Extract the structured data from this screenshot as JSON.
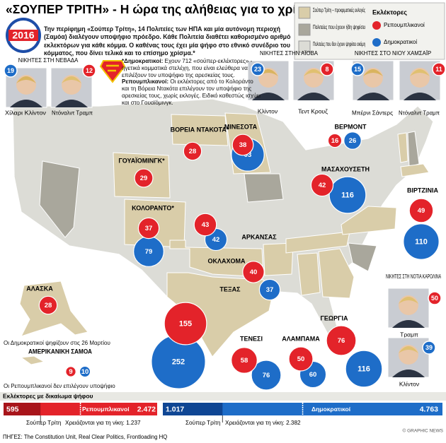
{
  "title": "«ΣΟΥΠΕΡ ΤΡΙΤΗ»",
  "title_rest": "- Η ώρα της αλήθειας για το χρίσμα",
  "badge": "2016",
  "intro": "Την περίφημη «Σούπερ Τρίτη», 14 Πολιτείες των ΗΠΑ και μία αυτόνομη περιοχή (Σαμόα) διαλέγουν υποψήφιο πρόεδρο. Κάθε Πολιτεία διαθέτει καθορισμένο αριθμό εκλεκτόρων για κάθε κόμμα. Ο καθένας τους έχει μία ψήφο στο εθνικό συνέδριο του κόμματος, που δίνει τελικά και το επίσημο χρίσμα.*",
  "notes": [
    {
      "lead": "*Δημοκρατικοί:",
      "text": "Εχουν 712 «σούπερ-εκλέκτορες» - ηγετικά κομματικά στελέχη, που είναι ελεύθερα να επιλέξουν τον υποψήφιο της αρεσκείας τους."
    },
    {
      "lead": "Ρεπουμπλικανοί:",
      "text": "Οι εκλέκτορες από το Κολοράντο και τη Βόρεια Ντακότα επιλέγουν τον υποψήφιο της αρεσκείας τους, χωρίς εκλογές. Ειδικό καθεστώς ισχύει και στο Γουαϊόμινγκ."
    }
  ],
  "map_legend": [
    {
      "label": "Σούπερ Τρίτη – προκριματικές εκλογές",
      "color": "#d9cda9"
    },
    {
      "label": "Πολιτείες που έχουν ήδη ψηφίσει",
      "color": "#a9a79c"
    },
    {
      "label": "Πολιτείες που δεν έχουν ψηφίσει ακόμη",
      "color": "#dcdcd6"
    }
  ],
  "delegates_legend": {
    "title": "Εκλέκτορες",
    "items": [
      {
        "label": "Ρεπουμπλικανοί",
        "color": "#e3232a"
      },
      {
        "label": "Δημοκρατικοί",
        "color": "#1e6dc8"
      }
    ]
  },
  "winners": [
    {
      "title": "ΝΙΚΗΤΕΣ ΣΤΗ ΝΕΒΑΔΑ",
      "candidates": [
        {
          "name": "Χίλαρι Κλίντον",
          "value": 19,
          "color": "#1e6dc8"
        },
        {
          "name": "Ντόναλντ Τραμπ",
          "value": 12,
          "color": "#e3232a"
        }
      ]
    },
    {
      "title": "ΝΙΚΗΤΕΣ ΣΤΗΝ ΑΪΟΒΑ",
      "candidates": [
        {
          "name": "Κλίντον",
          "value": 23,
          "color": "#1e6dc8"
        },
        {
          "name": "Τεντ Κρουζ",
          "value": 8,
          "color": "#e3232a"
        }
      ]
    },
    {
      "title": "ΝΙΚΗΤΕΣ ΣΤΟ ΝΙΟΥ ΧΑΜΣΑΪΡ",
      "candidates": [
        {
          "name": "Μπέρνι Σάντερς",
          "value": 15,
          "color": "#1e6dc8"
        },
        {
          "name": "Ντόναλντ Τραμπ",
          "value": 11,
          "color": "#e3232a"
        }
      ]
    },
    {
      "title": "ΝΙΚΗΤΕΣ ΣΤΗ ΝΟΤΙΑ ΚΑΡΟΛΙΝΑ",
      "candidates": [
        {
          "name": "Τραμπ",
          "value": 50,
          "color": "#e3232a"
        },
        {
          "name": "Κλίντον",
          "value": 39,
          "color": "#1e6dc8"
        }
      ]
    }
  ],
  "states": [
    {
      "name": "ΓΟΥΑΪΟΜΙΝΓΚ*",
      "rep": 29,
      "dem": null
    },
    {
      "name": "ΚΟΛΟΡΑΝΤΟ*",
      "rep": 37,
      "dem": 79
    },
    {
      "name": "ΒΟΡΕΙΑ ΝΤΑΚΟΤΑ*",
      "rep": 28,
      "dem": null
    },
    {
      "name": "ΜΙΝΕΣΟΤΑ",
      "rep": 38,
      "dem": 93
    },
    {
      "name": "ΟΚΛΑΧΟΜΑ",
      "rep": 43,
      "dem": 42
    },
    {
      "name": "ΑΡΚΑΝΣΑΣ",
      "rep": 40,
      "dem": 37
    },
    {
      "name": "ΤΕΞΑΣ",
      "rep": 155,
      "dem": 252
    },
    {
      "name": "ΤΕΝΕΣΙ",
      "rep": 58,
      "dem": 76
    },
    {
      "name": "ΑΛΑΜΠΑΜΑ",
      "rep": 50,
      "dem": 60
    },
    {
      "name": "ΓΕΩΡΓΙΑ",
      "rep": 76,
      "dem": 116
    },
    {
      "name": "ΒΙΡΤΖΙΝΙΑ",
      "rep": 49,
      "dem": 110
    },
    {
      "name": "ΜΑΣΑΧΟΥΣΕΤΗ",
      "rep": 42,
      "dem": 116
    },
    {
      "name": "ΒΕΡΜΟΝΤ",
      "rep": 16,
      "dem": 26
    },
    {
      "name": "ΑΛΑΣΚΑ",
      "rep": 28,
      "dem": null,
      "note": "Οι Δημοκρατικοί ψηφίζουν στις 26 Μαρτίου"
    },
    {
      "name": "ΑΜΕΡΙΚΑΝΙΚΗ ΣΑΜΟΑ",
      "rep": 9,
      "dem": 10,
      "note": "Οι Ρεπουμπλικανοί δεν επιλέγουν υποψήφιο"
    }
  ],
  "delegates": {
    "title": "Εκλέκτορες με δικαίωμα ψήφου",
    "parties": [
      {
        "name": "Ρεπουμπλικανοί",
        "color": "#e3232a",
        "dark": "#a8141a",
        "super_tuesday": 595,
        "total": 2472,
        "total_label": "2.472",
        "super_label": "Σούπερ Τρίτη",
        "needed_text": "Χρειάζονται για τη νίκη:",
        "needed": 1237,
        "needed_label": "1.237"
      },
      {
        "name": "Δημοκρατικοί",
        "color": "#1e6dc8",
        "dark": "#0f4694",
        "super_tuesday": 1017,
        "super_tuesday_label": "1.017",
        "total": 4763,
        "total_label": "4.763",
        "super_label": "Σούπερ Τρίτη",
        "needed_text": "Χρειάζονται για τη νίκη:",
        "needed": 2382,
        "needed_label": "2.382"
      }
    ]
  },
  "sources": "ΠΗΓΕΣ: The Constitution Unit, Real Clear Politics, Frontloading HQ",
  "credit": "© GRAPHIC NEWS"
}
